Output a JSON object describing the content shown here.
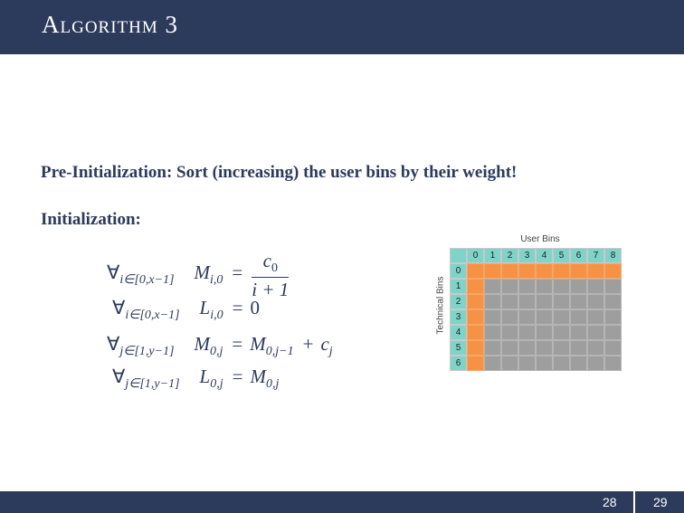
{
  "slide": {
    "title": "Algorithm 3",
    "pre_init": "Pre-Initialization: Sort (increasing) the user bins by their weight!",
    "init": "Initialization:",
    "page_left": "28",
    "page_right": "29"
  },
  "equations": [
    {
      "q": "∀",
      "qsub": "i∈[0,x−1]",
      "lhs": "M",
      "lhs_sub": "i,0",
      "eq": "=",
      "num": "c",
      "num_sub": "0",
      "den": "i + 1"
    },
    {
      "q": "∀",
      "qsub": "i∈[0,x−1]",
      "lhs": "L",
      "lhs_sub": "i,0",
      "eq": "=",
      "rhs": "0"
    },
    {
      "q": "∀",
      "qsub": "j∈[1,y−1]",
      "lhs": "M",
      "lhs_sub": "0,j",
      "eq": "=",
      "rhs1": "M",
      "rhs1_sub": "0,j−1",
      "plus": "+",
      "rhs2": "c",
      "rhs2_sub": "j"
    },
    {
      "q": "∀",
      "qsub": "j∈[1,y−1]",
      "lhs": "L",
      "lhs_sub": "0,j",
      "eq": "=",
      "rhs1": "M",
      "rhs1_sub": "0,j"
    }
  ],
  "grid": {
    "x_label": "User Bins",
    "y_label": "Technical Bins",
    "col_headers": [
      "0",
      "1",
      "2",
      "3",
      "4",
      "5",
      "6",
      "7",
      "8"
    ],
    "row_headers": [
      "0",
      "1",
      "2",
      "3",
      "4",
      "5",
      "6"
    ],
    "colors": {
      "header": "#7fd3c9",
      "init": "#f79244",
      "empty": "#9e9e9e"
    }
  }
}
